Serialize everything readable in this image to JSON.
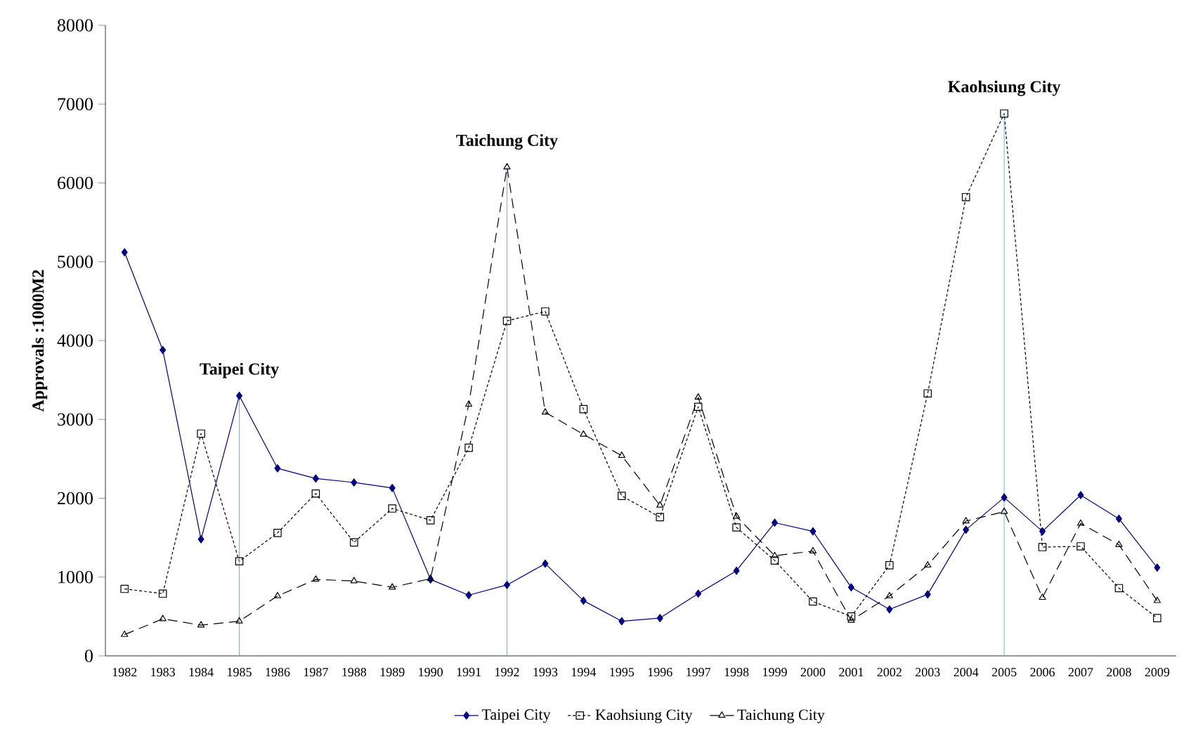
{
  "chart_data": {
    "type": "line",
    "ylabel": "Approvals :1000M2",
    "categories": [
      "1982",
      "1983",
      "1984",
      "1985",
      "1986",
      "1987",
      "1988",
      "1989",
      "1990",
      "1991",
      "1992",
      "1993",
      "1994",
      "1995",
      "1996",
      "1997",
      "1998",
      "1999",
      "2000",
      "2001",
      "2002",
      "2003",
      "2004",
      "2005",
      "2006",
      "2007",
      "2008",
      "2009"
    ],
    "series": [
      {
        "name": "Taipei City",
        "color": "#000080",
        "marker": "diamond",
        "line_style": "solid",
        "values": [
          5120,
          3880,
          1480,
          3300,
          2380,
          2250,
          2200,
          2130,
          970,
          770,
          900,
          1170,
          700,
          440,
          480,
          790,
          1080,
          1690,
          1580,
          870,
          590,
          780,
          1600,
          2010,
          1580,
          2040,
          1740,
          1120
        ]
      },
      {
        "name": "Kaohsiung City",
        "color": "#000000",
        "marker": "square",
        "line_style": "dotted",
        "values": [
          850,
          790,
          2820,
          1200,
          1560,
          2060,
          1440,
          1870,
          1720,
          2640,
          4250,
          4370,
          3130,
          2030,
          1760,
          3160,
          1630,
          1210,
          690,
          500,
          1150,
          3330,
          5820,
          6880,
          1380,
          1390,
          860,
          480
        ]
      },
      {
        "name": "Taichung City",
        "color": "#000000",
        "marker": "triangle",
        "line_style": "dashed",
        "values": [
          270,
          470,
          390,
          440,
          760,
          970,
          950,
          870,
          980,
          3190,
          6200,
          3090,
          2810,
          2540,
          1910,
          3280,
          1770,
          1270,
          1330,
          450,
          760,
          1150,
          1710,
          1830,
          740,
          1680,
          1410,
          700
        ]
      }
    ],
    "annotations": [
      {
        "text": "Taipei City",
        "x": "1985",
        "y": 3300
      },
      {
        "text": "Taichung City",
        "x": "1992",
        "y": 6200
      },
      {
        "text": "Kaohsiung City",
        "x": "2005",
        "y": 6880
      }
    ],
    "ylim": [
      0,
      8000
    ],
    "yticks": [
      0,
      1000,
      2000,
      3000,
      4000,
      5000,
      6000,
      7000,
      8000
    ],
    "legend": "bottom"
  }
}
